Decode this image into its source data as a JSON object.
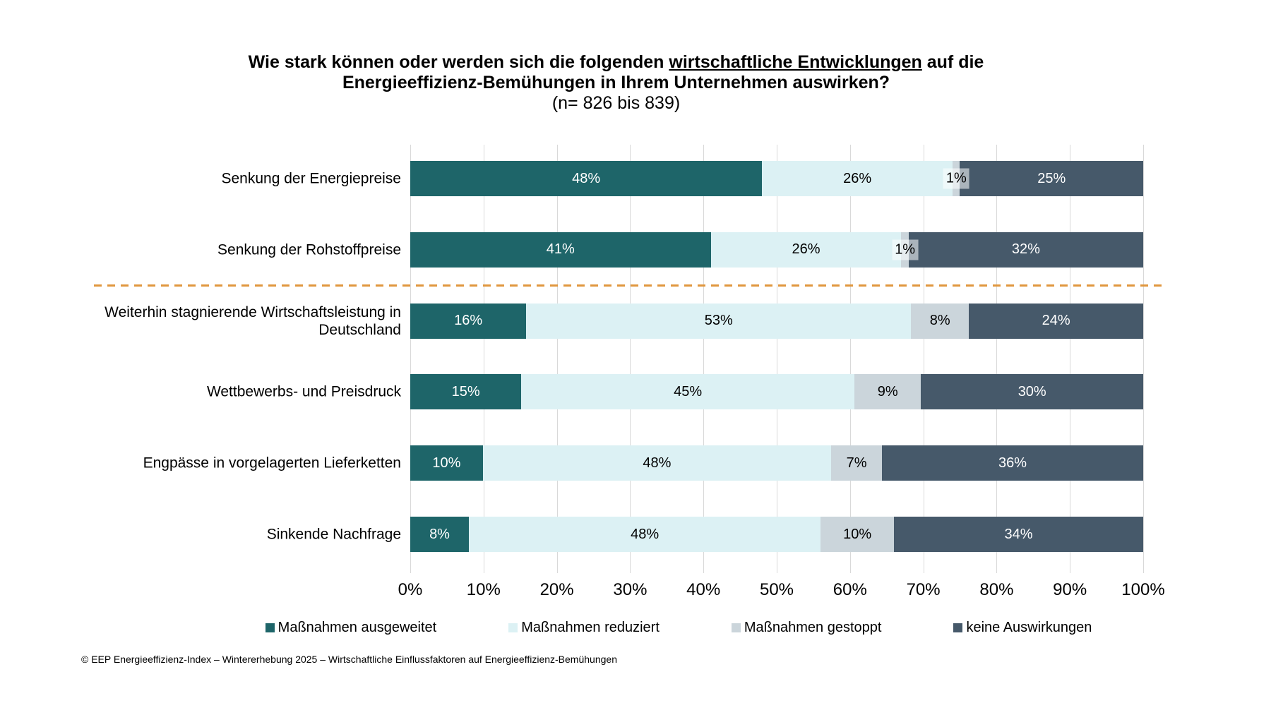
{
  "title": {
    "line1_prefix": "Wie stark können oder werden sich die folgenden ",
    "line1_underlined": "wirtschaftliche Entwicklungen",
    "line1_suffix": " auf die",
    "line2": "Energieeffizienz-Bemühungen in Ihrem Unternehmen auswirken?",
    "line3": "(n= 826 bis 839)"
  },
  "chart_data": {
    "type": "bar",
    "subtype": "horizontal-stacked",
    "title": "Wie stark können oder werden sich die folgenden wirtschaftliche Entwicklungen auf die Energieeffizienz-Bemühungen in Ihrem Unternehmen auswirken? (n= 826 bis 839)",
    "categories": [
      "Senkung der Energiepreise",
      "Senkung der Rohstoffpreise",
      "Weiterhin stagnierende Wirtschaftsleistung in Deutschland",
      "Wettbewerbs- und Preisdruck",
      "Engpässe in vorgelagerten Lieferketten",
      "Sinkende Nachfrage"
    ],
    "series": [
      {
        "name": "Maßnahmen ausgeweitet",
        "color": "#1E6569",
        "label_color": "#FFFFFF",
        "values": [
          48,
          41,
          16,
          15,
          10,
          8
        ]
      },
      {
        "name": "Maßnahmen reduziert",
        "color": "#DCF1F4",
        "label_color": "#000000",
        "values": [
          26,
          26,
          53,
          45,
          48,
          48
        ]
      },
      {
        "name": "Maßnahmen gestoppt",
        "color": "#CBD5DB",
        "label_color": "#000000",
        "values": [
          1,
          1,
          8,
          9,
          7,
          10
        ]
      },
      {
        "name": "keine Auswirkungen",
        "color": "#46596A",
        "label_color": "#FFFFFF",
        "values": [
          25,
          32,
          24,
          30,
          36,
          34
        ]
      }
    ],
    "x_ticks": [
      "0%",
      "10%",
      "20%",
      "30%",
      "40%",
      "50%",
      "60%",
      "70%",
      "80%",
      "90%",
      "100%"
    ],
    "xlim": [
      0,
      100
    ],
    "value_suffix": "%",
    "grid": "vertical",
    "legend_position": "bottom",
    "separator_after_category_index": 1
  },
  "colors": {
    "gridline": "#D9D9D9",
    "separator": "#E0973E"
  },
  "footer": {
    "text": "© EEP Energieeffizienz-Index – Wintererhebung 2025 – Wirtschaftliche Einflussfaktoren auf Energieeffizienz-Bemühungen"
  }
}
